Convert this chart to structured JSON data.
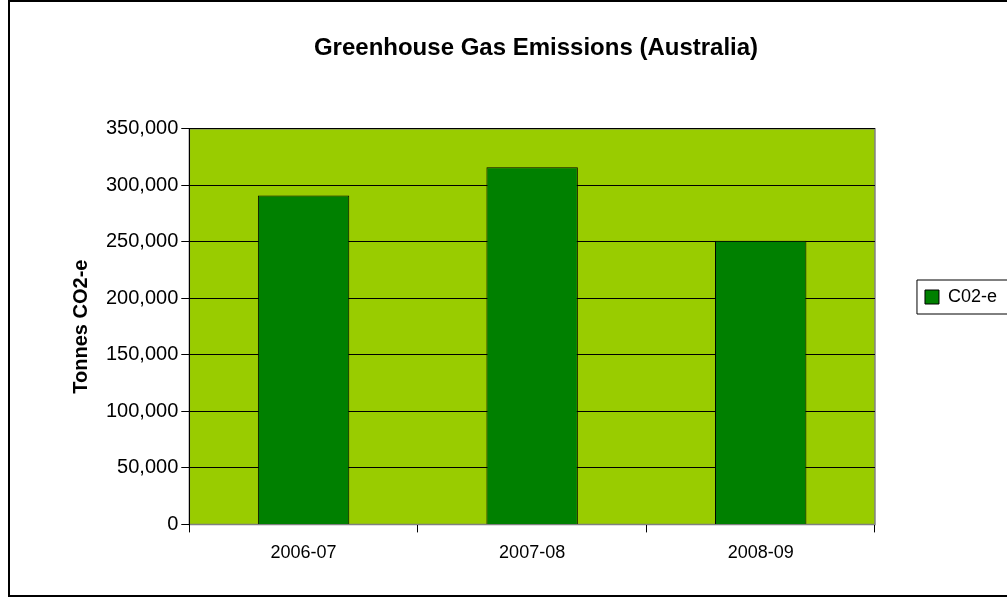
{
  "chart_data": {
    "type": "bar",
    "title": "Greenhouse Gas Emissions (Australia)",
    "ylabel": "Tonnes CO2-e",
    "categories": [
      "2006-07",
      "2007-08",
      "2008-09"
    ],
    "series": [
      {
        "name": "C02-e",
        "color": "#008000",
        "values": [
          291000,
          316000,
          251000
        ]
      }
    ],
    "ylim": [
      0,
      350000
    ],
    "yticks": [
      0,
      {
        "value": 50000,
        "label": "50,000"
      },
      {
        "value": 100000,
        "label": "100,000"
      },
      {
        "value": 150000,
        "label": "150,000"
      },
      {
        "value": 200000,
        "label": "200,000"
      },
      {
        "value": 250000,
        "label": "250,000"
      },
      {
        "value": 300000,
        "label": "300,000"
      },
      {
        "value": 350000,
        "label": "350,000"
      }
    ],
    "grid": "y",
    "legend": "right"
  }
}
